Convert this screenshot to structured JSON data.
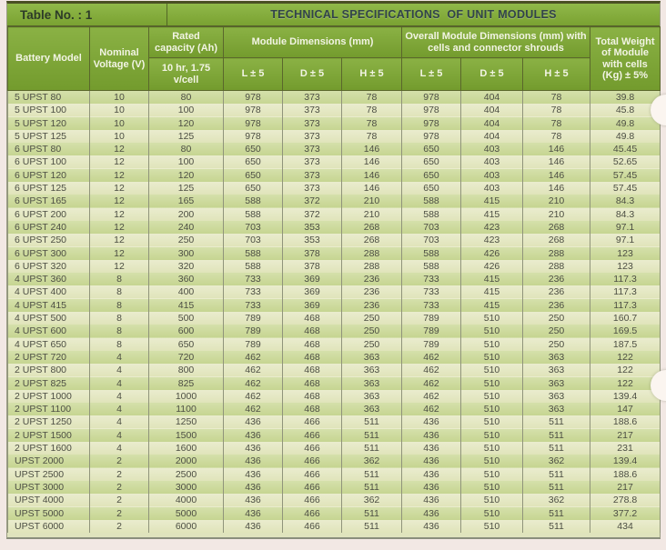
{
  "page": {
    "table_label": "Table No. : 1",
    "title": "TECHNICAL SPECIFICATIONS  OF UNIT MODULES"
  },
  "colors": {
    "header_green": "#7da637",
    "row_stripe_green": "#cbd99a",
    "row_stripe_cream": "#e6e9c6",
    "margin_pink": "#f2e8e4",
    "header_text": "#f2f4e4",
    "body_text": "#4c4e43"
  },
  "table": {
    "header": {
      "battery_model": "Battery Model",
      "nominal_voltage": "Nominal Voltage (V)",
      "rated_capacity": "Rated capacity (Ah)",
      "rated_capacity_sub": "10 hr, 1.75 v/cell",
      "module_dimensions": "Module Dimensions (mm)",
      "overall_dimensions": "Overall Module Dimensions (mm) with cells and connector shrouds",
      "sub": [
        "L ± 5",
        "D ± 5",
        "H ± 5"
      ],
      "total_weight": "Total Weight of Module with cells (Kg) ± 5%"
    },
    "rows": [
      [
        "5 UPST 80",
        "10",
        "80",
        "978",
        "373",
        "78",
        "978",
        "404",
        "78",
        "39.8"
      ],
      [
        "5 UPST 100",
        "10",
        "100",
        "978",
        "373",
        "78",
        "978",
        "404",
        "78",
        "45.8"
      ],
      [
        "5 UPST 120",
        "10",
        "120",
        "978",
        "373",
        "78",
        "978",
        "404",
        "78",
        "49.8"
      ],
      [
        "5 UPST 125",
        "10",
        "125",
        "978",
        "373",
        "78",
        "978",
        "404",
        "78",
        "49.8"
      ],
      [
        "6 UPST 80",
        "12",
        "80",
        "650",
        "373",
        "146",
        "650",
        "403",
        "146",
        "45.45"
      ],
      [
        "6 UPST 100",
        "12",
        "100",
        "650",
        "373",
        "146",
        "650",
        "403",
        "146",
        "52.65"
      ],
      [
        "6 UPST 120",
        "12",
        "120",
        "650",
        "373",
        "146",
        "650",
        "403",
        "146",
        "57.45"
      ],
      [
        "6 UPST 125",
        "12",
        "125",
        "650",
        "373",
        "146",
        "650",
        "403",
        "146",
        "57.45"
      ],
      [
        "6 UPST 165",
        "12",
        "165",
        "588",
        "372",
        "210",
        "588",
        "415",
        "210",
        "84.3"
      ],
      [
        "6 UPST 200",
        "12",
        "200",
        "588",
        "372",
        "210",
        "588",
        "415",
        "210",
        "84.3"
      ],
      [
        "6 UPST 240",
        "12",
        "240",
        "703",
        "353",
        "268",
        "703",
        "423",
        "268",
        "97.1"
      ],
      [
        "6 UPST 250",
        "12",
        "250",
        "703",
        "353",
        "268",
        "703",
        "423",
        "268",
        "97.1"
      ],
      [
        "6 UPST 300",
        "12",
        "300",
        "588",
        "378",
        "288",
        "588",
        "426",
        "288",
        "123"
      ],
      [
        "6 UPST 320",
        "12",
        "320",
        "588",
        "378",
        "288",
        "588",
        "426",
        "288",
        "123"
      ],
      [
        "4 UPST 360",
        "8",
        "360",
        "733",
        "369",
        "236",
        "733",
        "415",
        "236",
        "117.3"
      ],
      [
        "4 UPST 400",
        "8",
        "400",
        "733",
        "369",
        "236",
        "733",
        "415",
        "236",
        "117.3"
      ],
      [
        "4 UPST 415",
        "8",
        "415",
        "733",
        "369",
        "236",
        "733",
        "415",
        "236",
        "117.3"
      ],
      [
        "4 UPST 500",
        "8",
        "500",
        "789",
        "468",
        "250",
        "789",
        "510",
        "250",
        "160.7"
      ],
      [
        "4 UPST 600",
        "8",
        "600",
        "789",
        "468",
        "250",
        "789",
        "510",
        "250",
        "169.5"
      ],
      [
        "4 UPST 650",
        "8",
        "650",
        "789",
        "468",
        "250",
        "789",
        "510",
        "250",
        "187.5"
      ],
      [
        "2 UPST 720",
        "4",
        "720",
        "462",
        "468",
        "363",
        "462",
        "510",
        "363",
        "122"
      ],
      [
        "2 UPST 800",
        "4",
        "800",
        "462",
        "468",
        "363",
        "462",
        "510",
        "363",
        "122"
      ],
      [
        "2 UPST 825",
        "4",
        "825",
        "462",
        "468",
        "363",
        "462",
        "510",
        "363",
        "122"
      ],
      [
        "2 UPST 1000",
        "4",
        "1000",
        "462",
        "468",
        "363",
        "462",
        "510",
        "363",
        "139.4"
      ],
      [
        "2 UPST 1100",
        "4",
        "1100",
        "462",
        "468",
        "363",
        "462",
        "510",
        "363",
        "147"
      ],
      [
        "2 UPST 1250",
        "4",
        "1250",
        "436",
        "466",
        "511",
        "436",
        "510",
        "511",
        "188.6"
      ],
      [
        "2 UPST 1500",
        "4",
        "1500",
        "436",
        "466",
        "511",
        "436",
        "510",
        "511",
        "217"
      ],
      [
        "2 UPST 1600",
        "4",
        "1600",
        "436",
        "466",
        "511",
        "436",
        "510",
        "511",
        "231"
      ],
      [
        "UPST 2000",
        "2",
        "2000",
        "436",
        "466",
        "362",
        "436",
        "510",
        "362",
        "139.4"
      ],
      [
        "UPST 2500",
        "2",
        "2500",
        "436",
        "466",
        "511",
        "436",
        "510",
        "511",
        "188.6"
      ],
      [
        "UPST 3000",
        "2",
        "3000",
        "436",
        "466",
        "511",
        "436",
        "510",
        "511",
        "217"
      ],
      [
        "UPST 4000",
        "2",
        "4000",
        "436",
        "466",
        "362",
        "436",
        "510",
        "362",
        "278.8"
      ],
      [
        "UPST 5000",
        "2",
        "5000",
        "436",
        "466",
        "511",
        "436",
        "510",
        "511",
        "377.2"
      ],
      [
        "UPST 6000",
        "2",
        "6000",
        "436",
        "466",
        "511",
        "436",
        "510",
        "511",
        "434"
      ]
    ]
  }
}
